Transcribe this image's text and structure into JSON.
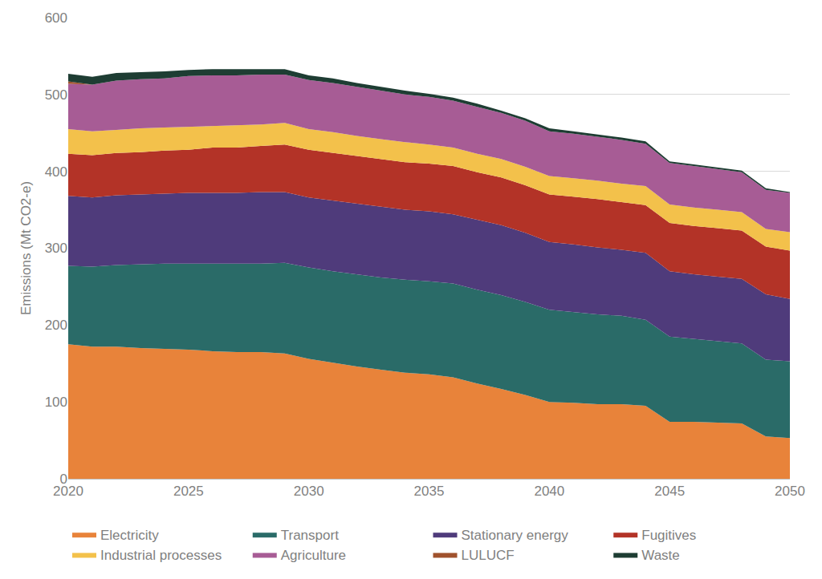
{
  "chart_data": {
    "type": "area",
    "stacked": true,
    "y_label": "Emissions (Mt CO2-e)",
    "x": [
      2020,
      2021,
      2022,
      2023,
      2024,
      2025,
      2026,
      2027,
      2028,
      2029,
      2030,
      2031,
      2032,
      2033,
      2034,
      2035,
      2036,
      2037,
      2038,
      2039,
      2040,
      2041,
      2042,
      2043,
      2044,
      2045,
      2046,
      2047,
      2048,
      2049,
      2050
    ],
    "xlim": [
      2020,
      2050
    ],
    "xticks": [
      2020,
      2025,
      2030,
      2035,
      2040,
      2045,
      2050
    ],
    "ylim": [
      0,
      600
    ],
    "yticks": [
      0,
      100,
      200,
      300,
      400,
      500,
      600
    ],
    "grid": true,
    "legend": "bottom",
    "series": [
      {
        "name": "Electricity",
        "color": "#e8833a",
        "values": [
          175,
          172,
          172,
          170,
          169,
          168,
          166,
          165,
          165,
          163,
          156,
          151,
          146,
          142,
          138,
          136,
          132,
          124,
          117,
          109,
          100,
          99,
          97,
          97,
          95,
          74,
          74,
          73,
          72,
          55,
          53
        ]
      },
      {
        "name": "Transport",
        "color": "#2a6b68",
        "values": [
          102,
          104,
          106,
          109,
          111,
          112,
          114,
          115,
          115,
          118,
          119,
          119,
          120,
          120,
          121,
          121,
          122,
          122,
          122,
          121,
          120,
          118,
          117,
          115,
          112,
          111,
          108,
          106,
          104,
          100,
          100
        ]
      },
      {
        "name": "Stationary energy",
        "color": "#4f3b7b",
        "values": [
          91,
          90,
          91,
          91,
          91,
          92,
          92,
          92,
          93,
          92,
          91,
          92,
          92,
          92,
          91,
          91,
          90,
          91,
          91,
          90,
          88,
          88,
          87,
          86,
          87,
          85,
          84,
          84,
          84,
          85,
          81
        ]
      },
      {
        "name": "Fugitives",
        "color": "#b33327",
        "values": [
          55,
          55,
          55,
          55,
          56,
          56,
          59,
          59,
          60,
          62,
          62,
          62,
          62,
          62,
          62,
          62,
          63,
          62,
          62,
          62,
          62,
          62,
          63,
          62,
          62,
          63,
          63,
          63,
          63,
          62,
          63
        ]
      },
      {
        "name": "Industrial processes",
        "color": "#f3c14b",
        "values": [
          32,
          31,
          30,
          31,
          30,
          30,
          28,
          29,
          28,
          28,
          27,
          27,
          26,
          26,
          26,
          25,
          24,
          24,
          24,
          24,
          24,
          24,
          24,
          24,
          25,
          24,
          24,
          24,
          24,
          23,
          24
        ]
      },
      {
        "name": "Agriculture",
        "color": "#a75c95",
        "values": [
          59,
          61,
          64,
          64,
          64,
          66,
          66,
          65,
          65,
          63,
          64,
          64,
          64,
          63,
          62,
          62,
          61,
          61,
          60,
          60,
          58,
          58,
          57,
          57,
          55,
          54,
          54,
          53,
          52,
          51,
          51
        ]
      },
      {
        "name": "LULUCF",
        "color": "#a0522d",
        "values": [
          3,
          0,
          0,
          0,
          0,
          0,
          0,
          0,
          0,
          0,
          0,
          0,
          0,
          0,
          0,
          0,
          0,
          0,
          0,
          0,
          0,
          0,
          0,
          0,
          0,
          0,
          0,
          0,
          0,
          0,
          0
        ]
      },
      {
        "name": "Waste",
        "color": "#1e3d33",
        "values": [
          10,
          10,
          10,
          9,
          9,
          8,
          8,
          8,
          7,
          7,
          6,
          6,
          5,
          5,
          5,
          4,
          4,
          4,
          3,
          3,
          4,
          3,
          3,
          3,
          3,
          2,
          2,
          2,
          2,
          2,
          1
        ]
      }
    ]
  }
}
